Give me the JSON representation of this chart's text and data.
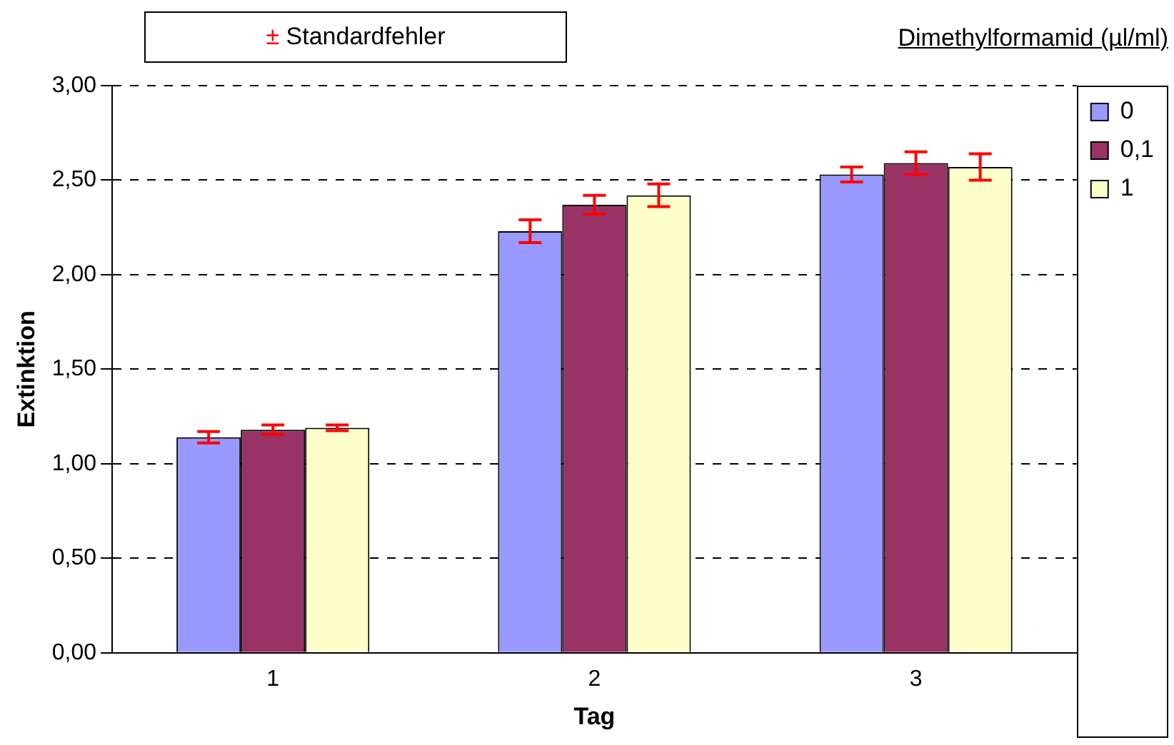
{
  "chart_data": {
    "type": "bar",
    "xlabel": "Tag",
    "ylabel": "Extinktion",
    "legend_title": "Dimethylformamid (µl/ml)",
    "annotations": [
      "± Standardfehler"
    ],
    "categories": [
      "1",
      "2",
      "3"
    ],
    "series": [
      {
        "name": "0",
        "color": "#9999ff",
        "values": [
          1.14,
          2.23,
          2.53
        ],
        "errors": [
          0.03,
          0.06,
          0.04
        ]
      },
      {
        "name": "0,1",
        "color": "#993366",
        "values": [
          1.18,
          2.37,
          2.59
        ],
        "errors": [
          0.025,
          0.05,
          0.06
        ]
      },
      {
        "name": "1",
        "color": "#ffffcc",
        "values": [
          1.19,
          2.42,
          2.57
        ],
        "errors": [
          0.015,
          0.06,
          0.07
        ]
      }
    ],
    "ylim": [
      0,
      3
    ],
    "yticks": [
      {
        "value": 0,
        "label": "0,00"
      },
      {
        "value": 0.5,
        "label": "0,50"
      },
      {
        "value": 1,
        "label": "1,00"
      },
      {
        "value": 1.5,
        "label": "1,50"
      },
      {
        "value": 2,
        "label": "2,00"
      },
      {
        "value": 2.5,
        "label": "2,50"
      },
      {
        "value": 3,
        "label": "3,00"
      }
    ],
    "grid": "y",
    "legend": "right"
  }
}
